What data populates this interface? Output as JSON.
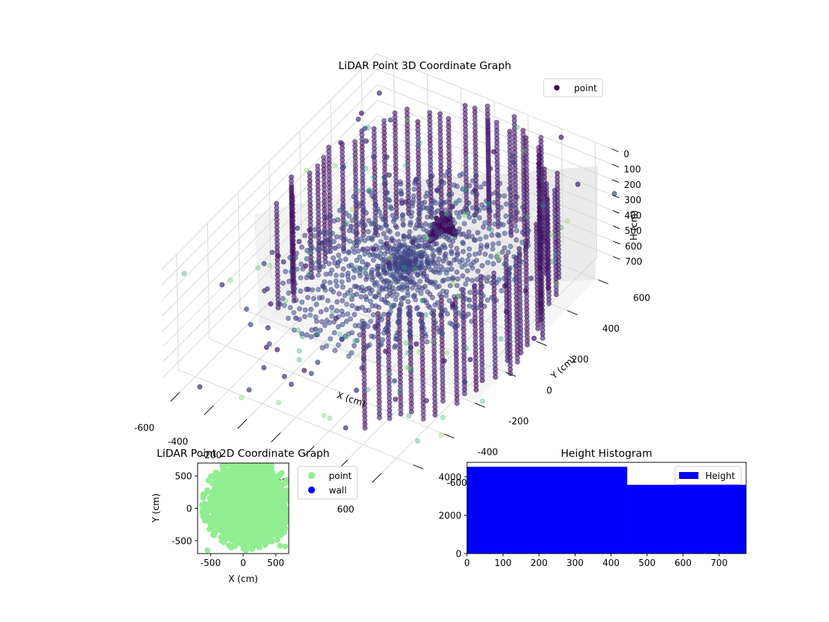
{
  "chart_data": [
    {
      "type": "scatter",
      "title": "LiDAR Point 3D Coordinate Graph",
      "xlabel": "X (cm)",
      "ylabel": "Y (cm)",
      "zlabel": "H (cm)",
      "xlim": [
        -700,
        700
      ],
      "ylim": [
        -700,
        700
      ],
      "zlim": [
        0,
        750
      ],
      "z_inverted": true,
      "xticks": [
        "-600",
        "-400",
        "-200",
        "0",
        "200",
        "400",
        "600"
      ],
      "yticks": [
        "-600",
        "-400",
        "-200",
        "0",
        "200",
        "400",
        "600"
      ],
      "zticks": [
        "0",
        "100",
        "200",
        "300",
        "400",
        "500",
        "600",
        "700"
      ],
      "grid": true,
      "legend": {
        "placement": "top-right",
        "entries": [
          {
            "label": "point",
            "color": "#440154"
          }
        ]
      },
      "colormap": "viridis",
      "description_of_data": "dense ring of walls at radius ~600 cm plus radial ground scan centered near (250, -150)"
    },
    {
      "type": "scatter",
      "title": "LiDAR Point 2D Coordinate Graph",
      "xlabel": "X (cm)",
      "ylabel": "Y (cm)",
      "xlim": [
        -700,
        700
      ],
      "ylim": [
        -700,
        700
      ],
      "xticks": [
        "-500",
        "0",
        "500"
      ],
      "yticks": [
        "-500",
        "0",
        "500"
      ],
      "legend": {
        "placement": "outside-right",
        "entries": [
          {
            "label": "point",
            "color": "#90ee90"
          },
          {
            "label": "wall",
            "color": "#0000ff"
          }
        ]
      }
    },
    {
      "type": "bar",
      "title": "Height Histogram",
      "xlabel": "",
      "ylabel": "",
      "xlim": [
        0,
        775
      ],
      "ylim": [
        0,
        4750
      ],
      "xticks": [
        "0",
        "100",
        "200",
        "300",
        "400",
        "500",
        "600",
        "700"
      ],
      "yticks": [
        "0",
        "2000",
        "4000"
      ],
      "bins": [
        {
          "start": 0,
          "end": 445,
          "count": 4520
        },
        {
          "start": 445,
          "end": 775,
          "count": 3580
        }
      ],
      "legend": {
        "placement": "top-right",
        "entries": [
          {
            "label": "Height",
            "color": "#0000ff"
          }
        ]
      }
    }
  ]
}
